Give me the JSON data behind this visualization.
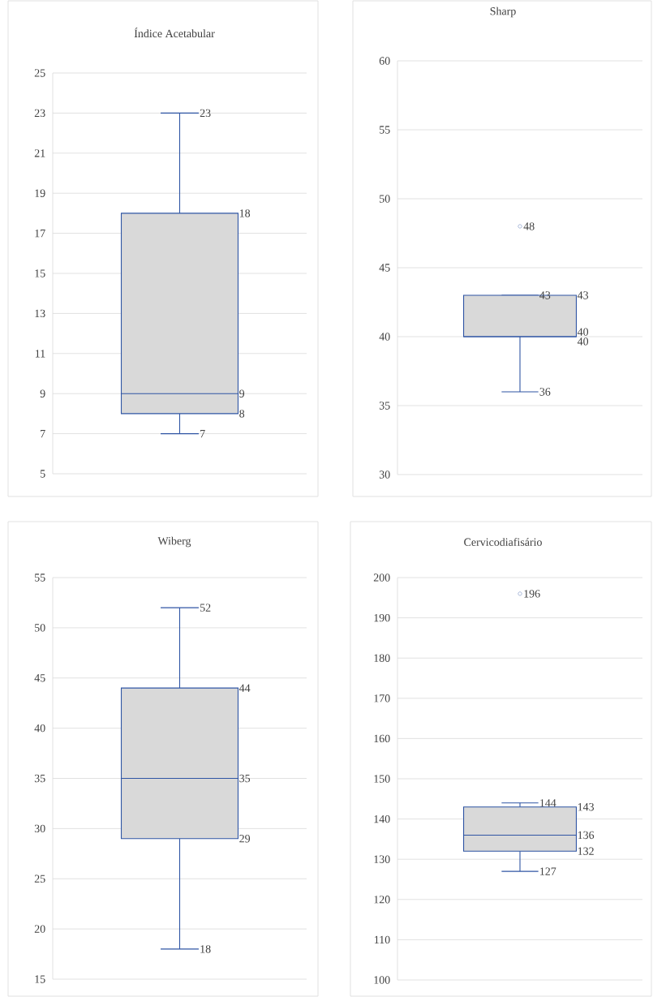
{
  "chart_data": [
    {
      "type": "box",
      "title": "Índice Acetabular",
      "categories": [
        null
      ],
      "color": "#d9d9d9",
      "boxes": [
        {
          "low": 7,
          "q1": 8,
          "median": 9,
          "q3": 18,
          "high": 23
        }
      ],
      "ylim": [
        5,
        25
      ],
      "yticks": [
        5,
        7,
        9,
        11,
        13,
        15,
        17,
        19,
        21,
        23,
        25
      ],
      "grid": "y",
      "tick_labels": "y",
      "annotations": [
        "23",
        "7",
        "18",
        "9",
        "8"
      ]
    },
    {
      "type": "box",
      "title": "Sharp",
      "categories": [
        null
      ],
      "color": "#d9d9d9",
      "boxes": [
        {
          "low": 36,
          "q1": 40,
          "median": 40,
          "q3": 43,
          "high": 43,
          "outliers": [
            48
          ]
        }
      ],
      "ylim": [
        30,
        60
      ],
      "yticks": [
        30,
        35,
        40,
        45,
        50,
        55,
        60
      ],
      "grid": "y",
      "tick_labels": "y",
      "annotations": [
        "43",
        "36",
        "43",
        "40",
        "40",
        "48"
      ]
    },
    {
      "type": "box",
      "title": "Wiberg",
      "categories": [
        null
      ],
      "color": "#d9d9d9",
      "boxes": [
        {
          "low": 18,
          "q1": 29,
          "median": 35,
          "q3": 44,
          "high": 52
        }
      ],
      "ylim": [
        15,
        55
      ],
      "yticks": [
        15,
        20,
        25,
        30,
        35,
        40,
        45,
        50,
        55
      ],
      "grid": "y",
      "tick_labels": "y",
      "annotations": [
        "52",
        "18",
        "44",
        "35",
        "29"
      ]
    },
    {
      "type": "box",
      "title": "Cervicodiafisário",
      "categories": [
        null
      ],
      "color": "#d9d9d9",
      "boxes": [
        {
          "low": 127,
          "q1": 132,
          "median": 136,
          "q3": 143,
          "high": 144,
          "outliers": [
            196
          ]
        }
      ],
      "ylim": [
        100,
        200
      ],
      "yticks": [
        100,
        110,
        120,
        130,
        140,
        150,
        160,
        170,
        180,
        190,
        200
      ],
      "grid": "y",
      "tick_labels": "y",
      "annotations": [
        "144",
        "127",
        "143",
        "136",
        "132",
        "196"
      ]
    }
  ]
}
